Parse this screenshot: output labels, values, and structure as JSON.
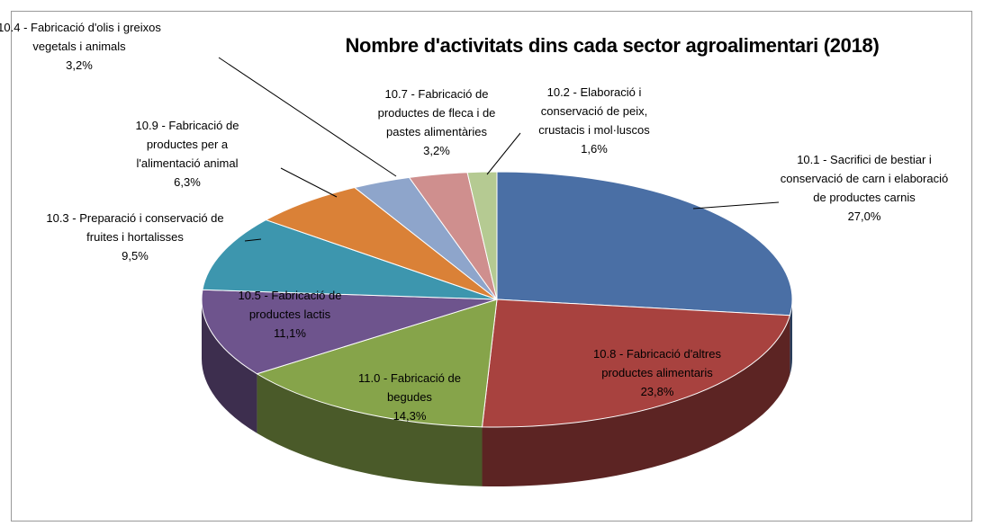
{
  "chart_data": {
    "type": "pie",
    "title": "Nombre d'activitats dins cada sector agroalimentari (2018)",
    "categories": [
      "10.1 - Sacrifici de bestiar i conservació de carn i elaboració de productes carnis",
      "10.8 - Fabricació d'altres productes alimentaris",
      "11.0 - Fabricació de begudes",
      "10.5 - Fabricació de productes lactis",
      "10.3 - Preparació i conservació de fruites i hortalisses",
      "10.9 - Fabricació de productes per a l'alimentació animal",
      "10.4 - Fabricació d'olis i greixos vegetals i animals",
      "10.7 - Fabricació de productes de fleca i de pastes alimentàries",
      "10.2 - Elaboració i conservació de peix, crustacis i mol·luscos"
    ],
    "values": [
      27.0,
      23.8,
      14.3,
      11.1,
      9.5,
      6.3,
      3.2,
      3.2,
      1.6
    ],
    "value_labels": [
      "27,0%",
      "23,8%",
      "14,3%",
      "11,1%",
      "9,5%",
      "6,3%",
      "3,2%",
      "3,2%",
      "1,6%"
    ],
    "colors": [
      "#4a6fa5",
      "#a8423f",
      "#86a44a",
      "#6e548d",
      "#3d96ae",
      "#da8137",
      "#8ea5cb",
      "#cf8f8e",
      "#b5ca92"
    ]
  }
}
